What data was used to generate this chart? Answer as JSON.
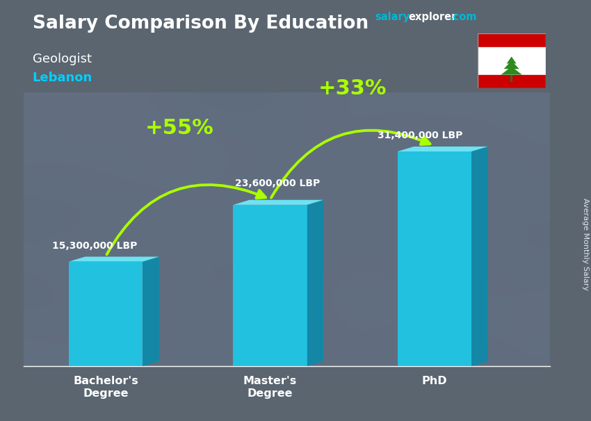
{
  "title": "Salary Comparison By Education",
  "subtitle": "Geologist",
  "country": "Lebanon",
  "categories": [
    "Bachelor's\nDegree",
    "Master's\nDegree",
    "PhD"
  ],
  "values": [
    15300000,
    23600000,
    31400000
  ],
  "value_labels": [
    "15,300,000 LBP",
    "23,600,000 LBP",
    "31,400,000 LBP"
  ],
  "pct_labels": [
    "+55%",
    "+33%"
  ],
  "bar_color_face": "#1ec8e8",
  "bar_color_side": "#0f8aaa",
  "bar_color_top": "#6ee8f8",
  "bg_color": "#6b7a8a",
  "title_color": "#ffffff",
  "subtitle_color": "#ffffff",
  "country_color": "#00cfff",
  "value_label_color": "#ffffff",
  "pct_color": "#aaff00",
  "arrow_color": "#aaff00",
  "wm_salary_color": "#00b8d4",
  "wm_explorer_color": "#ffffff",
  "wm_com_color": "#00b8d4",
  "side_label": "Average Monthly Salary",
  "ylim": [
    0,
    40000000
  ],
  "bar_width": 0.45,
  "x_positions": [
    0.5,
    1.5,
    2.5
  ],
  "xlim": [
    0,
    3.2
  ]
}
